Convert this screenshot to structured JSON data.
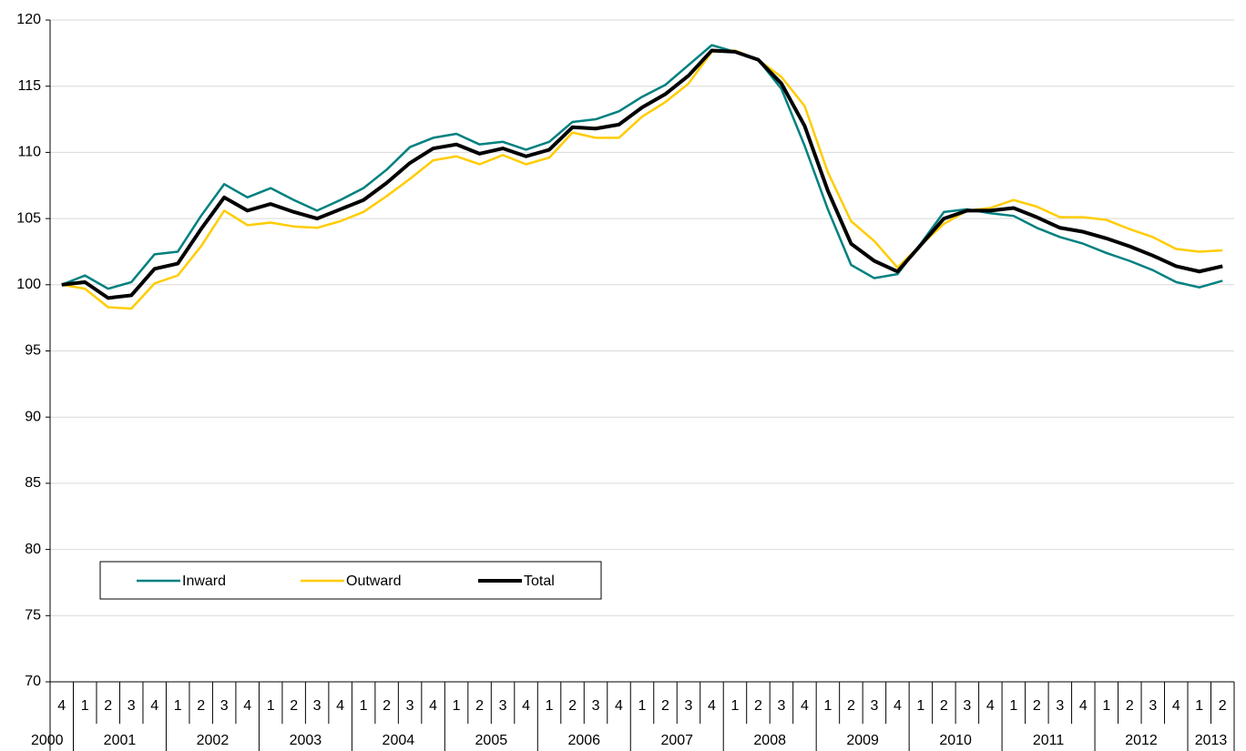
{
  "chart_data": {
    "type": "line",
    "categories": [
      "4",
      "1",
      "2",
      "3",
      "4",
      "1",
      "2",
      "3",
      "4",
      "1",
      "2",
      "3",
      "4",
      "1",
      "2",
      "3",
      "4",
      "1",
      "2",
      "3",
      "4",
      "1",
      "2",
      "3",
      "4",
      "1",
      "2",
      "3",
      "4",
      "1",
      "2",
      "3",
      "4",
      "1",
      "2",
      "3",
      "4",
      "1",
      "2",
      "3",
      "4",
      "1",
      "2",
      "3",
      "4",
      "1",
      "2",
      "3",
      "4",
      "1",
      "2"
    ],
    "year_groups": [
      {
        "label": "2000",
        "count": 1
      },
      {
        "label": "2001",
        "count": 4
      },
      {
        "label": "2002",
        "count": 4
      },
      {
        "label": "2003",
        "count": 4
      },
      {
        "label": "2004",
        "count": 4
      },
      {
        "label": "2005",
        "count": 4
      },
      {
        "label": "2006",
        "count": 4
      },
      {
        "label": "2007",
        "count": 4
      },
      {
        "label": "2008",
        "count": 4
      },
      {
        "label": "2009",
        "count": 4
      },
      {
        "label": "2010",
        "count": 4
      },
      {
        "label": "2011",
        "count": 4
      },
      {
        "label": "2012",
        "count": 4
      },
      {
        "label": "2013",
        "count": 2
      }
    ],
    "series": [
      {
        "name": "Inward",
        "color": "#008080",
        "width": 2.5,
        "values": [
          100,
          100.7,
          99.7,
          100.2,
          102.3,
          102.5,
          105.2,
          107.6,
          106.6,
          107.3,
          106.4,
          105.6,
          106.4,
          107.3,
          108.7,
          110.4,
          111.1,
          111.4,
          110.6,
          110.8,
          110.2,
          110.8,
          112.3,
          112.5,
          113.1,
          114.2,
          115.1,
          116.6,
          118.1,
          117.6,
          117.0,
          114.8,
          110.5,
          105.7,
          101.5,
          100.5,
          100.8,
          103.1,
          105.5,
          105.7,
          105.4,
          105.2,
          104.3,
          103.6,
          103.1,
          102.4,
          101.8,
          101.1,
          100.2,
          99.8,
          100.3
        ]
      },
      {
        "name": "Outward",
        "color": "#FFCC00",
        "width": 2.5,
        "values": [
          100,
          99.7,
          98.3,
          98.2,
          100.1,
          100.7,
          102.9,
          105.6,
          104.5,
          104.7,
          104.4,
          104.3,
          104.8,
          105.5,
          106.7,
          108.0,
          109.4,
          109.7,
          109.1,
          109.8,
          109.1,
          109.6,
          111.5,
          111.1,
          111.1,
          112.7,
          113.8,
          115.2,
          117.6,
          117.7,
          117.0,
          115.7,
          113.5,
          108.5,
          104.8,
          103.3,
          101.3,
          103.0,
          104.6,
          105.6,
          105.8,
          106.4,
          105.9,
          105.1,
          105.1,
          104.9,
          104.2,
          103.6,
          102.7,
          102.5,
          102.6
        ]
      },
      {
        "name": "Total",
        "color": "#000000",
        "width": 4,
        "values": [
          100,
          100.2,
          99.0,
          99.2,
          101.2,
          101.6,
          104.2,
          106.6,
          105.6,
          106.1,
          105.5,
          105.0,
          105.7,
          106.4,
          107.7,
          109.2,
          110.3,
          110.6,
          109.9,
          110.3,
          109.7,
          110.2,
          111.9,
          111.8,
          112.1,
          113.4,
          114.4,
          115.8,
          117.7,
          117.6,
          117.0,
          115.2,
          112.0,
          107.1,
          103.1,
          101.8,
          101.0,
          103.0,
          105.0,
          105.6,
          105.6,
          105.8,
          105.1,
          104.3,
          104.0,
          103.5,
          102.9,
          102.2,
          101.4,
          101.0,
          101.4
        ]
      }
    ],
    "ylim": [
      70,
      120
    ],
    "yticks": [
      70,
      75,
      80,
      85,
      90,
      95,
      100,
      105,
      110,
      115,
      120
    ],
    "grid": true
  }
}
